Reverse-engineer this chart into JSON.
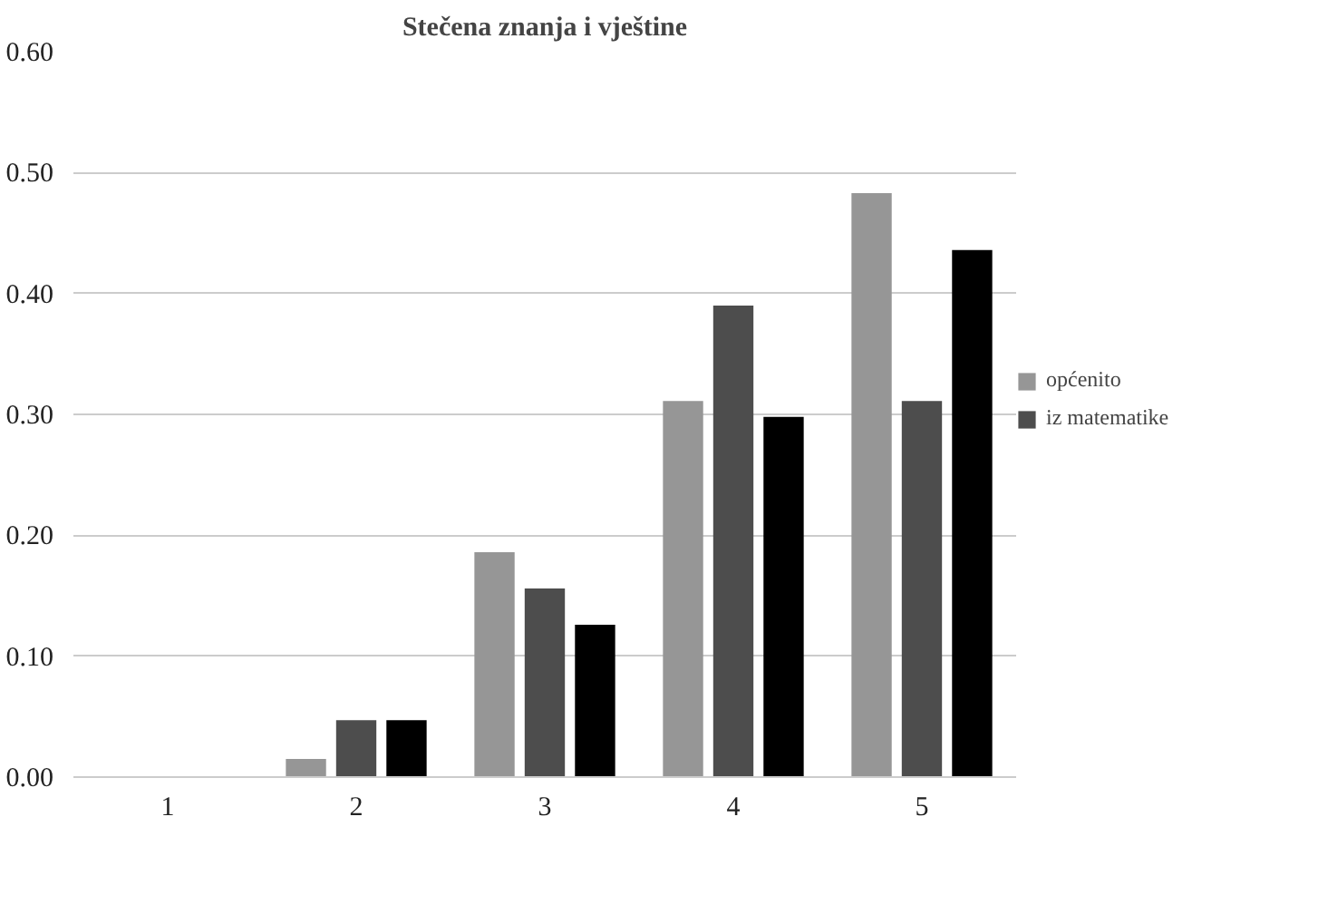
{
  "chart_data": {
    "type": "bar",
    "title": "Stečena znanja i vještine",
    "categories": [
      "1",
      "2",
      "3",
      "4",
      "5"
    ],
    "series": [
      {
        "name": "općenito",
        "color": "#969696",
        "values": [
          0,
          0.015,
          0.186,
          0.311,
          0.483
        ]
      },
      {
        "name": "iz matematike",
        "color": "#4d4d4d",
        "values": [
          0,
          0.047,
          0.156,
          0.39,
          0.311
        ]
      },
      {
        "color": "#000000",
        "values": [
          0,
          0.047,
          0.126,
          0.298,
          0.436
        ]
      }
    ],
    "ylim": [
      0,
      0.6
    ],
    "yticks": [
      {
        "value": 0,
        "label": "0.00"
      },
      {
        "value": 0.1,
        "label": "0.10"
      },
      {
        "value": 0.2,
        "label": "0.20"
      },
      {
        "value": 0.3,
        "label": "0.30"
      },
      {
        "value": 0.4,
        "label": "0.40"
      },
      {
        "value": 0.5,
        "label": "0.50"
      },
      {
        "value": 0.6,
        "label": "0.60"
      }
    ],
    "grid": "y",
    "legend": "right"
  }
}
